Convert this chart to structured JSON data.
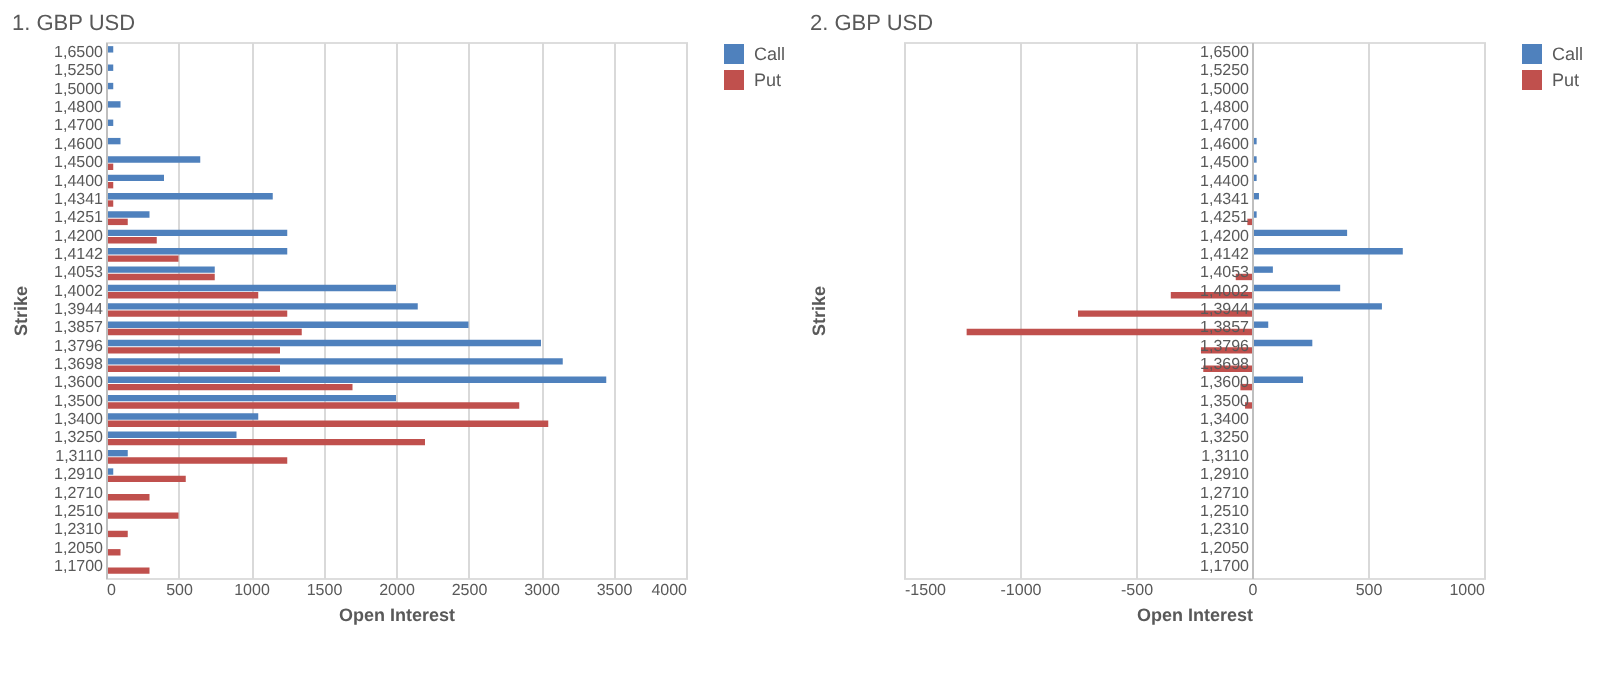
{
  "chart_data": [
    {
      "type": "bar",
      "orientation": "horizontal",
      "title": "1. GBP USD",
      "xlabel": "Open Interest",
      "ylabel": "Strike",
      "categories": [
        "1,6500",
        "1,5250",
        "1,5000",
        "1,4800",
        "1,4700",
        "1,4600",
        "1,4500",
        "1,4400",
        "1,4341",
        "1,4251",
        "1,4200",
        "1,4142",
        "1,4053",
        "1,4002",
        "1,3944",
        "1,3857",
        "1,3796",
        "1,3698",
        "1,3600",
        "1,3500",
        "1,3400",
        "1,3250",
        "1,3110",
        "1,2910",
        "1,2710",
        "1,2510",
        "1,2310",
        "1,2050",
        "1,1700"
      ],
      "series": [
        {
          "name": "Call",
          "color": "#4f81bd",
          "values": [
            50,
            50,
            50,
            100,
            50,
            100,
            650,
            400,
            1150,
            300,
            1250,
            1250,
            750,
            2000,
            2150,
            2500,
            3000,
            3150,
            3450,
            2000,
            1050,
            900,
            150,
            50,
            0,
            0,
            0,
            0,
            0
          ]
        },
        {
          "name": "Put",
          "color": "#c0504d",
          "values": [
            0,
            0,
            0,
            0,
            0,
            0,
            50,
            50,
            50,
            150,
            350,
            500,
            750,
            1050,
            1250,
            1350,
            1200,
            1200,
            1700,
            2850,
            3050,
            2200,
            1250,
            550,
            300,
            500,
            150,
            100,
            300
          ]
        }
      ],
      "xlim": [
        0,
        4000
      ],
      "xticks": [
        0,
        500,
        1000,
        1500,
        2000,
        2500,
        3000,
        3500,
        4000
      ],
      "grid": "x",
      "legend": "right"
    },
    {
      "type": "bar",
      "orientation": "horizontal",
      "title": "2. GBP USD",
      "xlabel": "Open Interest",
      "ylabel": "Strike",
      "categories": [
        "1,6500",
        "1,5250",
        "1,5000",
        "1,4800",
        "1,4700",
        "1,4600",
        "1,4500",
        "1,4400",
        "1,4341",
        "1,4251",
        "1,4200",
        "1,4142",
        "1,4053",
        "1,4002",
        "1,3944",
        "1,3857",
        "1,3796",
        "1,3698",
        "1,3600",
        "1,3500",
        "1,3400",
        "1,3250",
        "1,3110",
        "1,2910",
        "1,2710",
        "1,2510",
        "1,2310",
        "1,2050",
        "1,1700"
      ],
      "series": [
        {
          "name": "Call",
          "color": "#4f81bd",
          "values": [
            0,
            0,
            0,
            0,
            0,
            20,
            20,
            20,
            30,
            20,
            410,
            650,
            90,
            380,
            560,
            70,
            260,
            0,
            220,
            0,
            0,
            0,
            0,
            0,
            0,
            0,
            0,
            0,
            0
          ]
        },
        {
          "name": "Put",
          "color": "#c0504d",
          "values": [
            0,
            0,
            0,
            0,
            0,
            0,
            0,
            0,
            0,
            -20,
            0,
            0,
            -70,
            -350,
            -750,
            -1230,
            -220,
            -210,
            -50,
            -30,
            0,
            0,
            0,
            0,
            0,
            0,
            0,
            0,
            0
          ]
        }
      ],
      "xlim": [
        -1500,
        1000
      ],
      "xticks": [
        -1500,
        -1000,
        -500,
        0,
        500,
        1000
      ],
      "grid": "x",
      "legend": "right"
    }
  ]
}
